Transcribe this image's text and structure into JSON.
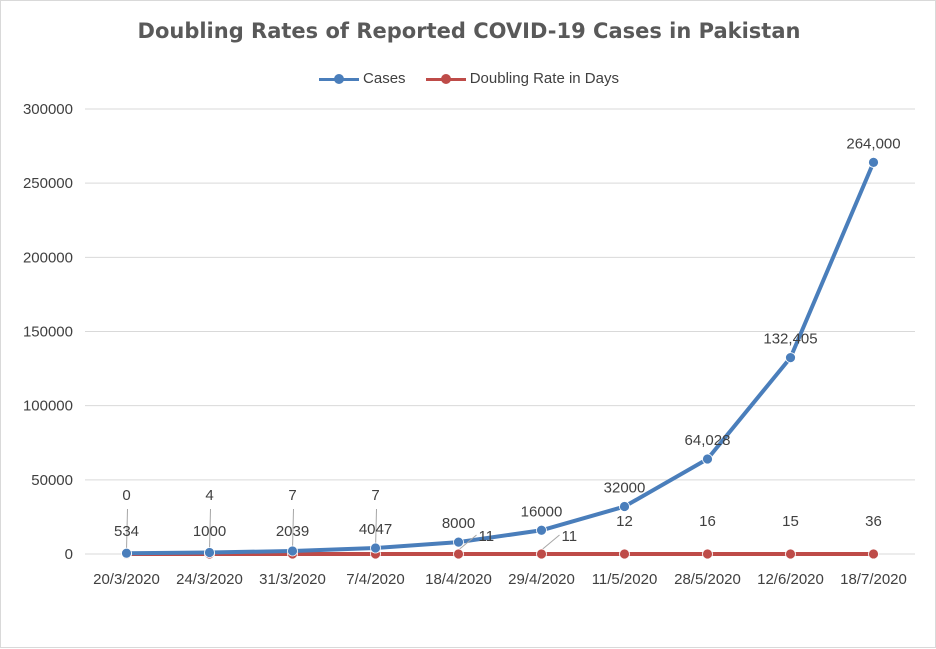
{
  "chart_data": {
    "type": "line",
    "title": "Doubling Rates of Reported COVID-19 Cases in Pakistan",
    "categories": [
      "20/3/2020",
      "24/3/2020",
      "31/3/2020",
      "7/4/2020",
      "18/4/2020",
      "29/4/2020",
      "11/5/2020",
      "28/5/2020",
      "12/6/2020",
      "18/7/2020"
    ],
    "ylim": [
      0,
      300000
    ],
    "yticks": [
      0,
      50000,
      100000,
      150000,
      200000,
      250000,
      300000
    ],
    "ytick_labels": [
      "0",
      "50000",
      "100000",
      "150000",
      "200000",
      "250000",
      "300000"
    ],
    "grid": true,
    "legend_position": "top",
    "series": [
      {
        "name": "Cases",
        "color": "#4a7ebb",
        "values": [
          534,
          1000,
          2039,
          4047,
          8000,
          16000,
          32000,
          64028,
          132405,
          264000
        ],
        "labels": [
          "534",
          "1000",
          "2039",
          "4047",
          "8000",
          "16000",
          "32000",
          "64,028",
          "132,405",
          "264,000"
        ]
      },
      {
        "name": "Doubling Rate in Days",
        "color": "#be4b48",
        "values": [
          0,
          4,
          7,
          7,
          11,
          11,
          12,
          16,
          15,
          36
        ],
        "labels": [
          "0",
          "4",
          "7",
          "7",
          "11",
          "11",
          "12",
          "16",
          "15",
          "36"
        ]
      }
    ]
  }
}
